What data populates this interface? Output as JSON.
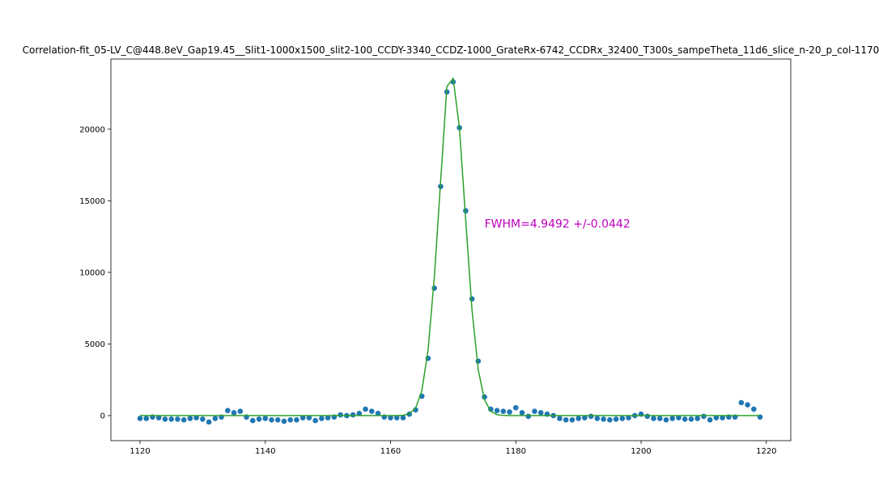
{
  "chart_data": {
    "type": "scatter",
    "title": "Correlation-fit_05-LV_C@448.8eV_Gap19.45__Slit1-1000x1500_slit2-100_CCDY-3340_CCDZ-1000_GrateRx-6742_CCDRx_32400_T300s_sampeTheta_11d6_slice_n-20_p_col-1170",
    "xlim": [
      1115.35,
      1223.9
    ],
    "ylim": [
      -1750,
      24900
    ],
    "xticks": [
      1120,
      1140,
      1160,
      1180,
      1200,
      1220
    ],
    "yticks": [
      0,
      5000,
      10000,
      15000,
      20000
    ],
    "series": [
      {
        "type": "scatter",
        "color": "#1f77b4",
        "x": [
          1120,
          1121,
          1122,
          1123,
          1124,
          1125,
          1126,
          1127,
          1128,
          1129,
          1130,
          1131,
          1132,
          1133,
          1134,
          1135,
          1136,
          1137,
          1138,
          1139,
          1140,
          1141,
          1142,
          1143,
          1144,
          1145,
          1146,
          1147,
          1148,
          1149,
          1150,
          1151,
          1152,
          1153,
          1154,
          1155,
          1156,
          1157,
          1158,
          1159,
          1160,
          1161,
          1162,
          1163,
          1164,
          1165,
          1166,
          1167,
          1168,
          1169,
          1170,
          1171,
          1172,
          1173,
          1174,
          1175,
          1176,
          1177,
          1178,
          1179,
          1180,
          1181,
          1182,
          1183,
          1184,
          1185,
          1186,
          1187,
          1188,
          1189,
          1190,
          1191,
          1192,
          1193,
          1194,
          1195,
          1196,
          1197,
          1198,
          1199,
          1200,
          1201,
          1202,
          1203,
          1204,
          1205,
          1206,
          1207,
          1208,
          1209,
          1210,
          1211,
          1212,
          1213,
          1214,
          1215,
          1216,
          1217,
          1218,
          1219
        ],
        "values": [
          -200,
          -200,
          -100,
          -150,
          -250,
          -250,
          -250,
          -300,
          -200,
          -150,
          -250,
          -450,
          -200,
          -100,
          350,
          200,
          300,
          -100,
          -350,
          -250,
          -200,
          -300,
          -300,
          -400,
          -300,
          -300,
          -150,
          -150,
          -350,
          -200,
          -150,
          -100,
          50,
          0,
          50,
          150,
          450,
          300,
          150,
          -100,
          -150,
          -150,
          -150,
          100,
          400,
          1350,
          4000,
          8900,
          16000,
          22600,
          23300,
          20100,
          14300,
          8150,
          3800,
          1300,
          450,
          350,
          300,
          250,
          550,
          200,
          -50,
          300,
          200,
          100,
          0,
          -200,
          -300,
          -300,
          -200,
          -150,
          -50,
          -200,
          -250,
          -300,
          -250,
          -200,
          -150,
          0,
          100,
          -50,
          -200,
          -200,
          -300,
          -200,
          -150,
          -250,
          -250,
          -200,
          -50,
          -300,
          -150,
          -150,
          -100,
          -100,
          900,
          750,
          450,
          -100
        ]
      },
      {
        "type": "line",
        "color": "#2ca02c",
        "x": [
          1120,
          1161,
          1162,
          1163,
          1164,
          1165,
          1166,
          1167,
          1168,
          1169,
          1170,
          1171,
          1172,
          1173,
          1174,
          1175,
          1176,
          1177,
          1178,
          1179,
          1219
        ],
        "values": [
          0,
          0,
          24,
          125,
          523,
          1738,
          4603,
          9721,
          16384,
          22994,
          23543,
          20087,
          13663,
          7407,
          3200,
          1102,
          303,
          66,
          11,
          0,
          0
        ]
      }
    ],
    "annotations": [
      {
        "text": "FWHM=4.9492 +/-0.0442",
        "x": 1175,
        "y": 13400,
        "color": "#bf00bf"
      }
    ]
  }
}
